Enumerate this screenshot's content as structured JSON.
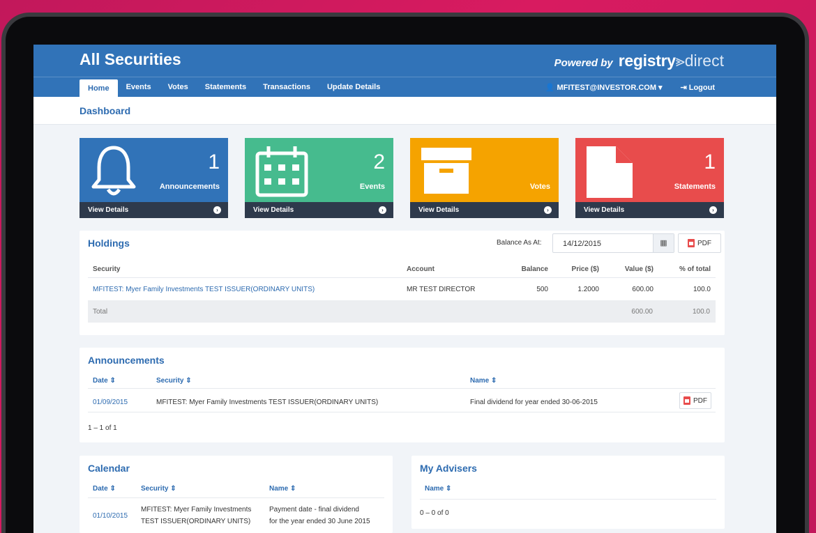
{
  "header": {
    "title": "All Securities",
    "powered_by": "Powered by",
    "brand_a": "registry",
    "brand_b": "direct"
  },
  "nav": {
    "items": [
      "Home",
      "Events",
      "Votes",
      "Statements",
      "Transactions",
      "Update Details"
    ],
    "user": "MFITEST@INVESTOR.COM",
    "logout": "Logout"
  },
  "breadcrumb": "Dashboard",
  "tiles": [
    {
      "count": "1",
      "label": "Announcements",
      "footer": "View Details",
      "color": "#3173b8",
      "icon": "bell-icon"
    },
    {
      "count": "2",
      "label": "Events",
      "footer": "View Details",
      "color": "#46bb8e",
      "icon": "calendar-icon"
    },
    {
      "count": "",
      "label": "Votes",
      "footer": "View Details",
      "color": "#f5a300",
      "icon": "archive-box-icon"
    },
    {
      "count": "1",
      "label": "Statements",
      "footer": "View Details",
      "color": "#e84c4c",
      "icon": "document-icon"
    }
  ],
  "holdings": {
    "title": "Holdings",
    "balance_label": "Balance As At:",
    "balance_date": "14/12/2015",
    "pdf_label": "PDF",
    "columns": [
      "Security",
      "Account",
      "Balance",
      "Price ($)",
      "Value ($)",
      "% of total"
    ],
    "row": {
      "security": "MFITEST: Myer Family Investments TEST ISSUER(ORDINARY UNITS)",
      "account": "MR TEST DIRECTOR",
      "balance": "500",
      "price": "1.2000",
      "value": "600.00",
      "pct": "100.0"
    },
    "total": {
      "label": "Total",
      "value": "600.00",
      "pct": "100.0"
    }
  },
  "announcements": {
    "title": "Announcements",
    "columns": [
      "Date ⇕",
      "Security ⇕",
      "Name ⇕"
    ],
    "row": {
      "date": "01/09/2015",
      "security": "MFITEST: Myer Family Investments TEST ISSUER(ORDINARY UNITS)",
      "name": "Final dividend for year ended 30-06-2015",
      "pdf": "PDF"
    },
    "pager": "1 – 1 of 1"
  },
  "calendar": {
    "title": "Calendar",
    "columns": [
      "Date ⇕",
      "Security ⇕",
      "Name ⇕"
    ],
    "row": {
      "date": "01/10/2015",
      "security_1": "MFITEST: Myer Family Investments",
      "security_2": "TEST ISSUER(ORDINARY UNITS)",
      "name_1": "Payment date - final dividend",
      "name_2": "for the year ended 30 June 2015"
    }
  },
  "advisers": {
    "title": "My Advisers",
    "column": "Name ⇕",
    "pager": "0 – 0 of 0"
  }
}
